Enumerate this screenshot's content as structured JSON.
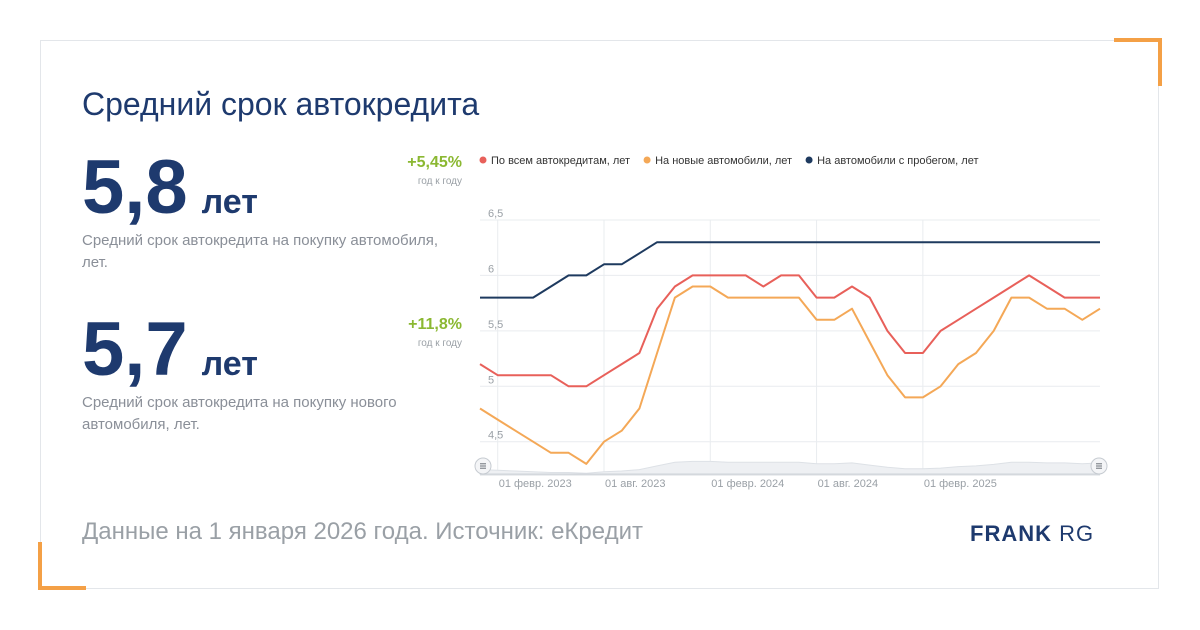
{
  "page": {
    "title": "Средний срок автокредита",
    "footnote": "Данные на 1 января 2026 года. Источник: еКредит",
    "brand_main": "FRANK",
    "brand_suffix": "RG"
  },
  "stats": [
    {
      "value": "5,8",
      "unit": "лет",
      "description": "Средний срок автокредита на покупку автомобиля, лет.",
      "change": "+5,45%",
      "change_period": "год к году"
    },
    {
      "value": "5,7",
      "unit": "лет",
      "description": "Средний срок автокредита на покупку нового автомобиля, лет.",
      "change": "+11,8%",
      "change_period": "год к году"
    }
  ],
  "colors": {
    "accent": "#f4a046",
    "title": "#1e3a6e",
    "positive": "#8bb832"
  },
  "chart_data": {
    "type": "line",
    "title": "",
    "xlabel": "",
    "ylabel": "",
    "ylim": [
      4.2,
      6.5
    ],
    "yticks": [
      4.5,
      5,
      5.5,
      6,
      6.5
    ],
    "ytick_labels": [
      "4,5",
      "5",
      "5,5",
      "6",
      "6,5"
    ],
    "x": [
      "2023-01",
      "2023-02",
      "2023-03",
      "2023-04",
      "2023-05",
      "2023-06",
      "2023-07",
      "2023-08",
      "2023-09",
      "2023-10",
      "2023-11",
      "2023-12",
      "2024-01",
      "2024-02",
      "2024-03",
      "2024-04",
      "2024-05",
      "2024-06",
      "2024-07",
      "2024-08",
      "2024-09",
      "2024-10",
      "2024-11",
      "2024-12",
      "2025-01",
      "2025-02",
      "2025-03",
      "2025-04",
      "2025-05",
      "2025-06",
      "2025-07",
      "2025-08",
      "2025-09",
      "2025-10",
      "2025-11",
      "2025-12"
    ],
    "xtick_labels": [
      {
        "x": "2023-02",
        "label": "01 февр. 2023"
      },
      {
        "x": "2023-08",
        "label": "01 авг. 2023"
      },
      {
        "x": "2024-02",
        "label": "01 февр. 2024"
      },
      {
        "x": "2024-08",
        "label": "01 авг. 2024"
      },
      {
        "x": "2025-02",
        "label": "01 февр. 2025"
      }
    ],
    "legend_position": "top",
    "grid": true,
    "series": [
      {
        "name": "По всем автокредитам, лет",
        "color": "#e8605a",
        "values": [
          5.2,
          5.1,
          5.1,
          5.1,
          5.1,
          5.0,
          5.0,
          5.1,
          5.2,
          5.3,
          5.7,
          5.9,
          6.0,
          6.0,
          6.0,
          6.0,
          5.9,
          6.0,
          6.0,
          5.8,
          5.8,
          5.9,
          5.8,
          5.5,
          5.3,
          5.3,
          5.5,
          5.6,
          5.7,
          5.8,
          5.9,
          6.0,
          5.9,
          5.8,
          5.8,
          5.8
        ]
      },
      {
        "name": "На новые автомобили, лет",
        "color": "#f4a857",
        "values": [
          4.8,
          4.7,
          4.6,
          4.5,
          4.4,
          4.4,
          4.3,
          4.5,
          4.6,
          4.8,
          5.3,
          5.8,
          5.9,
          5.9,
          5.8,
          5.8,
          5.8,
          5.8,
          5.8,
          5.6,
          5.6,
          5.7,
          5.4,
          5.1,
          4.9,
          4.9,
          5.0,
          5.2,
          5.3,
          5.5,
          5.8,
          5.8,
          5.7,
          5.7,
          5.6,
          5.7
        ]
      },
      {
        "name": "На автомобили с пробегом, лет",
        "color": "#1e3a5f",
        "values": [
          5.8,
          5.8,
          5.8,
          5.8,
          5.9,
          6.0,
          6.0,
          6.1,
          6.1,
          6.2,
          6.3,
          6.3,
          6.3,
          6.3,
          6.3,
          6.3,
          6.3,
          6.3,
          6.3,
          6.3,
          6.3,
          6.3,
          6.3,
          6.3,
          6.3,
          6.3,
          6.3,
          6.3,
          6.3,
          6.3,
          6.3,
          6.3,
          6.3,
          6.3,
          6.3,
          6.3
        ]
      }
    ]
  }
}
